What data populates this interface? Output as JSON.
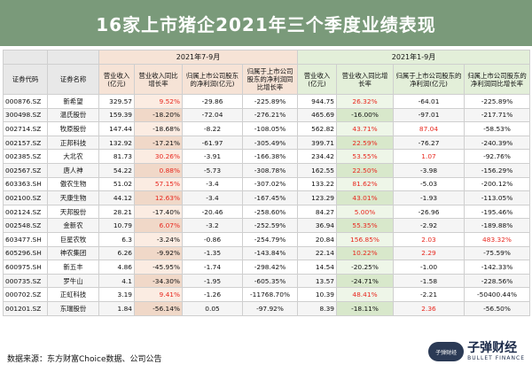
{
  "title": "16家上市猪企2021年三个季度业绩表现",
  "headers": {
    "group_q3": "2021年7-9月",
    "group_ytd": "2021年1-9月",
    "code": "证券代码",
    "name": "证券名称",
    "q3_rev": "营业收入(亿元)",
    "q3_rev_yoy": "营业收入同比增长率",
    "q3_profit": "归属上市公司股东的净利润(亿元)",
    "q3_profit_yoy": "归属于上市公司股东的净利润同比增长率",
    "ytd_rev": "营业收入(亿元)",
    "ytd_rev_yoy": "营业收入同比增长率",
    "ytd_profit": "归属于上市公司股东的净利润(亿元)",
    "ytd_profit_yoy": "归属上市公司股东的净利润同比增长率"
  },
  "rows": [
    {
      "code": "000876.SZ",
      "name": "新希望",
      "q3_rev": "329.57",
      "q3_rev_yoy": "9.52%",
      "q3_profit": "-29.86",
      "q3_profit_yoy": "-225.89%",
      "ytd_rev": "944.75",
      "ytd_rev_yoy": "26.32%",
      "ytd_profit": "-64.01",
      "ytd_profit_yoy": "-225.89%"
    },
    {
      "code": "300498.SZ",
      "name": "温氏股份",
      "q3_rev": "159.39",
      "q3_rev_yoy": "-18.20%",
      "q3_profit": "-72.04",
      "q3_profit_yoy": "-276.21%",
      "ytd_rev": "465.69",
      "ytd_rev_yoy": "-16.00%",
      "ytd_profit": "-97.01",
      "ytd_profit_yoy": "-217.71%"
    },
    {
      "code": "002714.SZ",
      "name": "牧原股份",
      "q3_rev": "147.44",
      "q3_rev_yoy": "-18.68%",
      "q3_profit": "-8.22",
      "q3_profit_yoy": "-108.05%",
      "ytd_rev": "562.82",
      "ytd_rev_yoy": "43.71%",
      "ytd_profit": "87.04",
      "ytd_profit_yoy": "-58.53%"
    },
    {
      "code": "002157.SZ",
      "name": "正邦科技",
      "q3_rev": "132.92",
      "q3_rev_yoy": "-17.21%",
      "q3_profit": "-61.97",
      "q3_profit_yoy": "-305.49%",
      "ytd_rev": "399.71",
      "ytd_rev_yoy": "22.59%",
      "ytd_profit": "-76.27",
      "ytd_profit_yoy": "-240.39%"
    },
    {
      "code": "002385.SZ",
      "name": "大北农",
      "q3_rev": "81.73",
      "q3_rev_yoy": "30.26%",
      "q3_profit": "-3.91",
      "q3_profit_yoy": "-166.38%",
      "ytd_rev": "234.42",
      "ytd_rev_yoy": "53.55%",
      "ytd_profit": "1.07",
      "ytd_profit_yoy": "-92.76%"
    },
    {
      "code": "002567.SZ",
      "name": "唐人神",
      "q3_rev": "54.22",
      "q3_rev_yoy": "0.88%",
      "q3_profit": "-5.73",
      "q3_profit_yoy": "-308.78%",
      "ytd_rev": "162.55",
      "ytd_rev_yoy": "22.50%",
      "ytd_profit": "-3.98",
      "ytd_profit_yoy": "-156.29%"
    },
    {
      "code": "603363.SH",
      "name": "傲农生物",
      "q3_rev": "51.02",
      "q3_rev_yoy": "57.15%",
      "q3_profit": "-3.4",
      "q3_profit_yoy": "-307.02%",
      "ytd_rev": "133.22",
      "ytd_rev_yoy": "81.62%",
      "ytd_profit": "-5.03",
      "ytd_profit_yoy": "-200.12%"
    },
    {
      "code": "002100.SZ",
      "name": "天康生物",
      "q3_rev": "44.12",
      "q3_rev_yoy": "12.63%",
      "q3_profit": "-3.4",
      "q3_profit_yoy": "-167.45%",
      "ytd_rev": "123.29",
      "ytd_rev_yoy": "43.01%",
      "ytd_profit": "-1.93",
      "ytd_profit_yoy": "-113.05%"
    },
    {
      "code": "002124.SZ",
      "name": "天邦股份",
      "q3_rev": "28.21",
      "q3_rev_yoy": "-17.40%",
      "q3_profit": "-20.46",
      "q3_profit_yoy": "-258.60%",
      "ytd_rev": "84.27",
      "ytd_rev_yoy": "5.00%",
      "ytd_profit": "-26.96",
      "ytd_profit_yoy": "-195.46%"
    },
    {
      "code": "002548.SZ",
      "name": "金新农",
      "q3_rev": "10.79",
      "q3_rev_yoy": "6.07%",
      "q3_profit": "-3.2",
      "q3_profit_yoy": "-252.59%",
      "ytd_rev": "36.94",
      "ytd_rev_yoy": "55.35%",
      "ytd_profit": "-2.92",
      "ytd_profit_yoy": "-189.88%"
    },
    {
      "code": "603477.SH",
      "name": "巨星农牧",
      "q3_rev": "6.3",
      "q3_rev_yoy": "-3.24%",
      "q3_profit": "-0.86",
      "q3_profit_yoy": "-254.79%",
      "ytd_rev": "20.84",
      "ytd_rev_yoy": "156.85%",
      "ytd_profit": "2.03",
      "ytd_profit_yoy": "483.32%"
    },
    {
      "code": "605296.SH",
      "name": "神农集团",
      "q3_rev": "6.26",
      "q3_rev_yoy": "-9.92%",
      "q3_profit": "-1.35",
      "q3_profit_yoy": "-143.84%",
      "ytd_rev": "22.14",
      "ytd_rev_yoy": "10.22%",
      "ytd_profit": "2.29",
      "ytd_profit_yoy": "-75.59%"
    },
    {
      "code": "600975.SH",
      "name": "新五丰",
      "q3_rev": "4.86",
      "q3_rev_yoy": "-45.95%",
      "q3_profit": "-1.74",
      "q3_profit_yoy": "-298.42%",
      "ytd_rev": "14.54",
      "ytd_rev_yoy": "-20.25%",
      "ytd_profit": "-1.00",
      "ytd_profit_yoy": "-142.33%"
    },
    {
      "code": "000735.SZ",
      "name": "罗牛山",
      "q3_rev": "4.1",
      "q3_rev_yoy": "-34.30%",
      "q3_profit": "-1.95",
      "q3_profit_yoy": "-605.35%",
      "ytd_rev": "13.57",
      "ytd_rev_yoy": "-24.71%",
      "ytd_profit": "-1.58",
      "ytd_profit_yoy": "-228.56%"
    },
    {
      "code": "000702.SZ",
      "name": "正虹科技",
      "q3_rev": "3.19",
      "q3_rev_yoy": "9.41%",
      "q3_profit": "-1.26",
      "q3_profit_yoy": "-11768.70%",
      "ytd_rev": "10.39",
      "ytd_rev_yoy": "48.41%",
      "ytd_profit": "-2.21",
      "ytd_profit_yoy": "-50400.44%"
    },
    {
      "code": "001201.SZ",
      "name": "东瑞股份",
      "q3_rev": "1.84",
      "q3_rev_yoy": "-56.14%",
      "q3_profit": "0.05",
      "q3_profit_yoy": "-97.92%",
      "ytd_rev": "8.39",
      "ytd_rev_yoy": "-18.11%",
      "ytd_profit": "2.36",
      "ytd_profit_yoy": "-56.50%"
    }
  ],
  "footer": "数据来源：东方财富Choice数据、公司公告",
  "logo": {
    "cn": "子弹财经",
    "en": "BULLET FINANCE",
    "mark": "子弹财经"
  },
  "colors": {
    "title_bg": "#7a9a7a",
    "q3_group": "#f6e3d6",
    "ytd_group": "#e3efd9",
    "highlight_red": "#e8281f"
  }
}
